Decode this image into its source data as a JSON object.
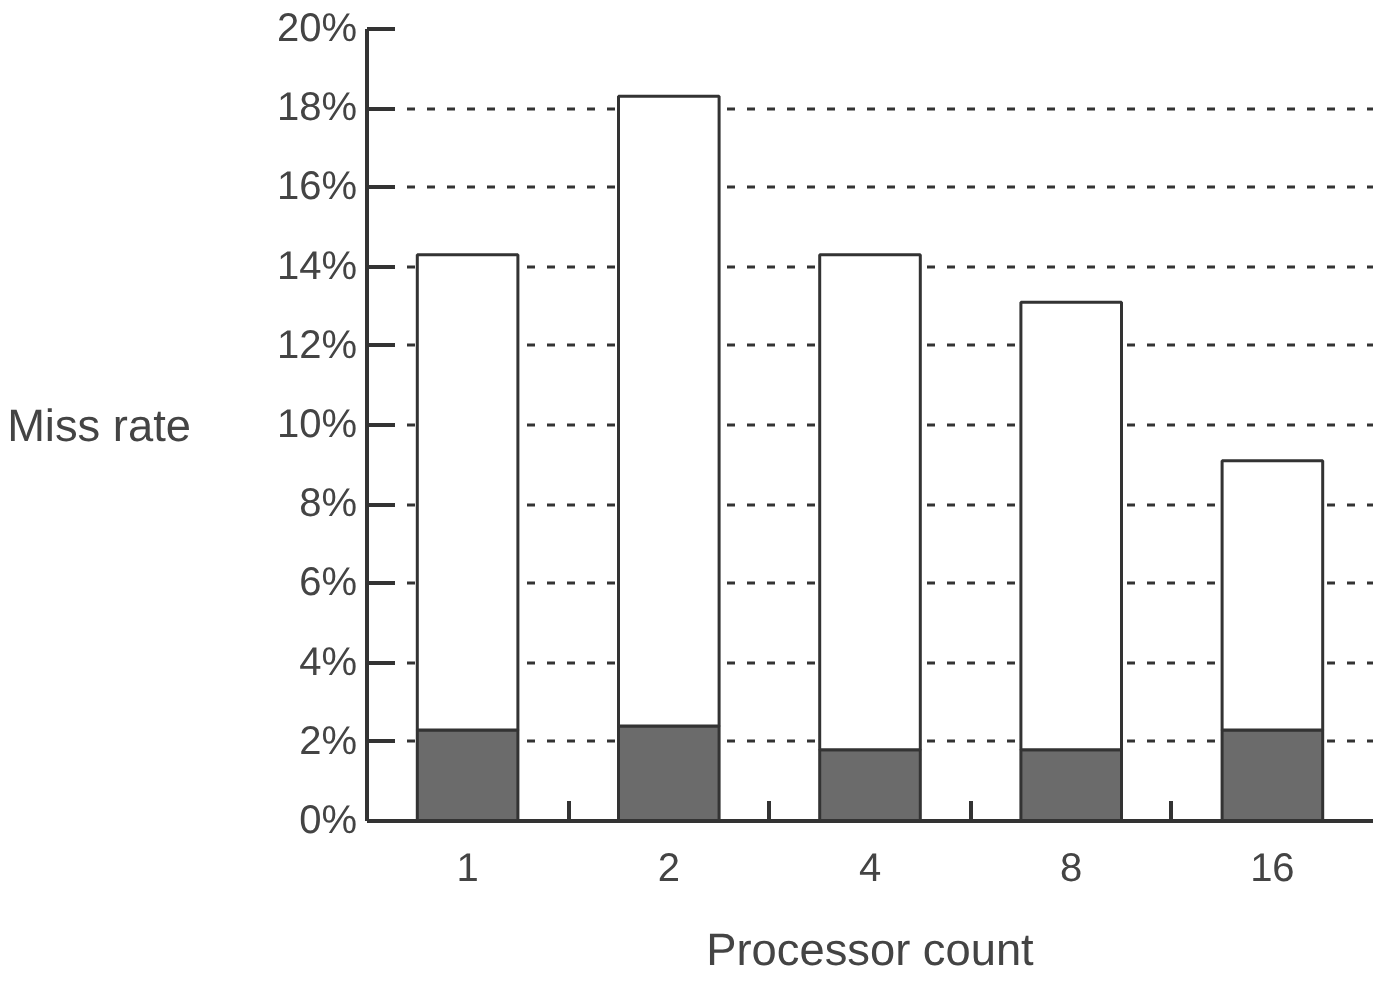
{
  "chart_data": {
    "type": "bar",
    "stacked": true,
    "xlabel": "Processor count",
    "ylabel": "Miss rate",
    "categories": [
      "1",
      "2",
      "4",
      "8",
      "16"
    ],
    "series": [
      {
        "color": "#6b6b6b",
        "values": [
          2.3,
          2.4,
          1.8,
          1.8,
          2.3
        ]
      },
      {
        "color": "#ffffff",
        "values": [
          12.0,
          15.9,
          12.5,
          11.3,
          6.8
        ]
      }
    ],
    "ylim": [
      0,
      20
    ],
    "yticks": [
      {
        "value": 0,
        "label": "0%"
      },
      {
        "value": 2,
        "label": "2%"
      },
      {
        "value": 4,
        "label": "4%"
      },
      {
        "value": 6,
        "label": "6%"
      },
      {
        "value": 8,
        "label": "8%"
      },
      {
        "value": 10,
        "label": "10%"
      },
      {
        "value": 12,
        "label": "12%"
      },
      {
        "value": 14,
        "label": "14%"
      },
      {
        "value": 16,
        "label": "16%"
      },
      {
        "value": 18,
        "label": "18%"
      },
      {
        "value": 20,
        "label": "20%"
      }
    ],
    "grid": "y"
  }
}
